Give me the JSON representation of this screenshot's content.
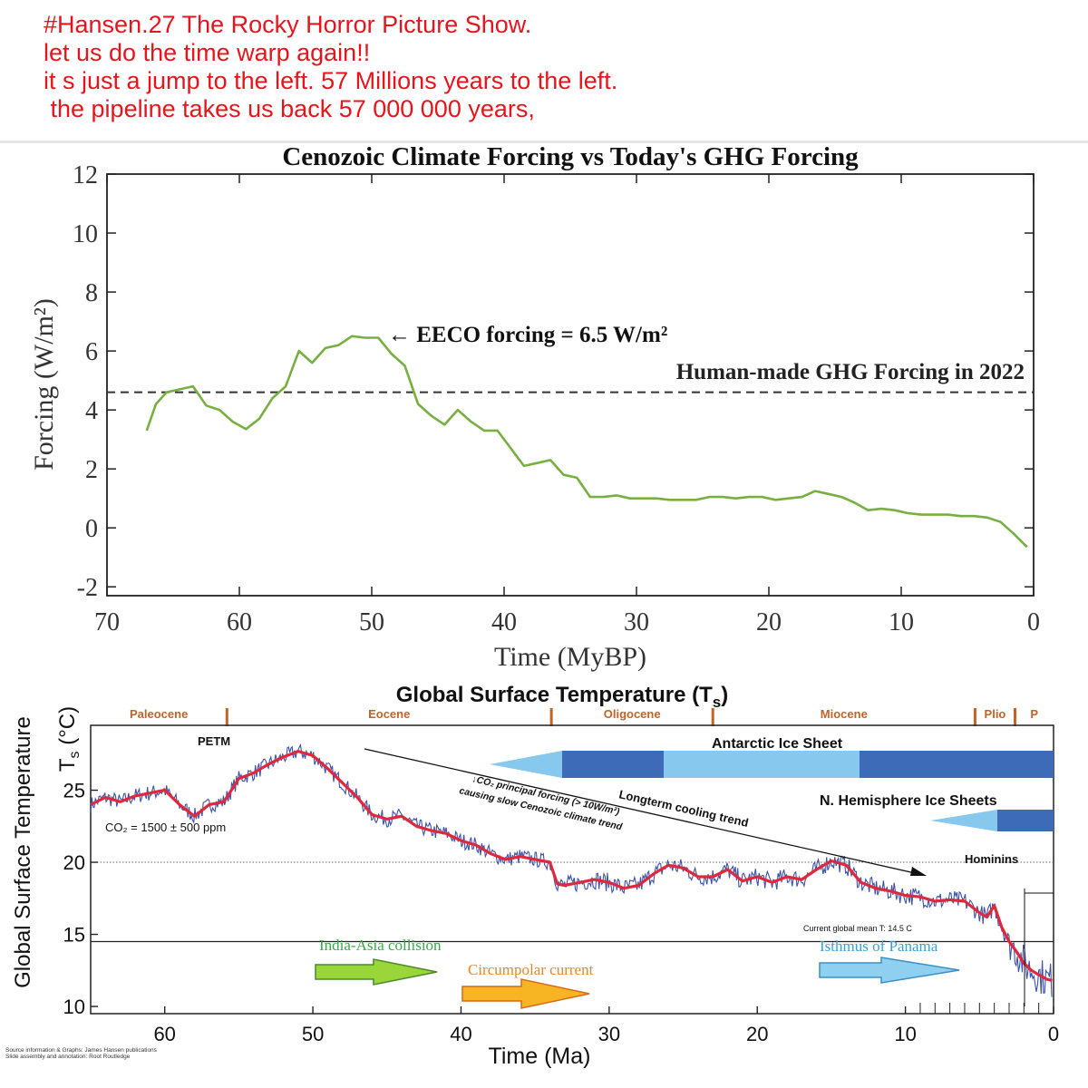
{
  "header": {
    "lines": [
      "#Hansen.27 The Rocky Horror Picture Show.",
      "let us do the time warp again!!",
      "it s just a jump to the left. 57 Millions years to the left.",
      " the pipeline takes us back 57 000 000 years,"
    ]
  },
  "chart_data": [
    {
      "type": "line",
      "title": "Cenozoic Climate Forcing vs Today's GHG Forcing",
      "xlabel": "Time (MyBP)",
      "ylabel": "Forcing (W/m²)",
      "xlim": [
        70,
        0
      ],
      "ylim": [
        -2.3,
        12
      ],
      "xticks": [
        70,
        60,
        50,
        40,
        30,
        20,
        10,
        0
      ],
      "yticks": [
        -2,
        0,
        2,
        4,
        6,
        8,
        10,
        12
      ],
      "grid": false,
      "series": [
        {
          "color": "#77b041",
          "x": [
            67,
            66.3,
            65.5,
            64.5,
            63.5,
            62.5,
            61.5,
            60.5,
            59.5,
            58.5,
            57.5,
            56.5,
            55.5,
            54.5,
            53.5,
            52.5,
            51.5,
            50.5,
            49.5,
            48.5,
            47.5,
            46.5,
            45.5,
            44.5,
            43.5,
            42.5,
            41.5,
            40.5,
            39.5,
            38.5,
            37.5,
            36.5,
            35.5,
            34.5,
            33.5,
            32.5,
            31.5,
            30.5,
            29.5,
            28.5,
            27.5,
            26.5,
            25.5,
            24.5,
            23.5,
            22.5,
            21.5,
            20.5,
            19.5,
            18.5,
            17.5,
            16.5,
            15.5,
            14.5,
            13.5,
            12.5,
            11.5,
            10.5,
            9.5,
            8.5,
            7.5,
            6.5,
            5.5,
            4.5,
            3.5,
            2.5,
            1.5,
            0.5
          ],
          "y": [
            3.3,
            4.2,
            4.6,
            4.7,
            4.8,
            4.15,
            4.0,
            3.6,
            3.35,
            3.7,
            4.4,
            4.8,
            6.0,
            5.6,
            6.1,
            6.2,
            6.5,
            6.45,
            6.45,
            5.9,
            5.5,
            4.2,
            3.8,
            3.5,
            4.0,
            3.6,
            3.3,
            3.3,
            2.7,
            2.1,
            2.2,
            2.3,
            1.8,
            1.7,
            1.05,
            1.05,
            1.1,
            1.0,
            1.0,
            1.0,
            0.95,
            0.95,
            0.95,
            1.05,
            1.05,
            1.0,
            1.05,
            1.05,
            0.95,
            1.0,
            1.05,
            1.25,
            1.15,
            1.05,
            0.85,
            0.6,
            0.65,
            0.6,
            0.5,
            0.45,
            0.45,
            0.45,
            0.4,
            0.4,
            0.35,
            0.2,
            -0.2,
            -0.65
          ]
        }
      ],
      "reference_line": {
        "y": 4.6,
        "label": "Human-made GHG Forcing in 2022",
        "style": "dashed"
      },
      "annotation": {
        "text": "← EECO forcing = 6.5 W/m²",
        "x": 50.5,
        "y": 6.5
      }
    },
    {
      "type": "line",
      "title": "Global Surface Temperature (Ts)",
      "xlabel": "Time (Ma)",
      "ylabel": "Global Surface Temperature Ts (°C)",
      "xlim": [
        65,
        0
      ],
      "ylim": [
        9.5,
        29.5
      ],
      "xticks": [
        60,
        50,
        40,
        30,
        20,
        10,
        0
      ],
      "yticks": [
        10,
        15,
        20,
        25
      ],
      "series": [
        {
          "name": "smoothed",
          "color": "#e0283c",
          "x": [
            65,
            64,
            63,
            62,
            61,
            60,
            59,
            58,
            57,
            56,
            55,
            54,
            53,
            52,
            51,
            50,
            49,
            48,
            47,
            46,
            45,
            44,
            43,
            42,
            41,
            40,
            39,
            38,
            37,
            36,
            35,
            34,
            33.5,
            33,
            32,
            31,
            30,
            29,
            28,
            27,
            26,
            25,
            24,
            23,
            22,
            21,
            20,
            19,
            18,
            17,
            16,
            15,
            14,
            13,
            12,
            11,
            10,
            9,
            8,
            7,
            6,
            5,
            4.5,
            4,
            3.5,
            3,
            2.5,
            2,
            1.5,
            1,
            0.5,
            0.1
          ],
          "y": [
            24,
            24.5,
            24.2,
            24.6,
            24.8,
            25,
            24,
            23.2,
            24,
            24.2,
            25.8,
            26.2,
            26.8,
            27.3,
            27.7,
            27.4,
            26.5,
            25.5,
            24.5,
            23.3,
            23.0,
            23.2,
            22.5,
            22.2,
            22.0,
            21.5,
            21.2,
            20.6,
            20.2,
            20.4,
            20.2,
            20.0,
            18.5,
            18.4,
            18.6,
            18.8,
            18.6,
            18.2,
            18.4,
            19.2,
            19.8,
            19.6,
            19.0,
            19.0,
            19.5,
            18.7,
            19.0,
            18.6,
            19.0,
            18.8,
            19.5,
            20.1,
            19.8,
            18.6,
            18.2,
            18.0,
            17.7,
            17.6,
            17.3,
            17.4,
            17.3,
            16.5,
            16.2,
            17.0,
            15.5,
            14.5,
            13.8,
            13.0,
            12.5,
            12.2,
            11.9,
            11.8
          ]
        }
      ],
      "reference_lines": [
        {
          "y": 20,
          "style": "dotted"
        },
        {
          "y": 14.5,
          "label": "Current global mean T: 14.5 C",
          "style": "solid"
        }
      ],
      "epochs": [
        "Paleocene",
        "Eocene",
        "Oligocene",
        "Miocene",
        "Plio",
        "P"
      ],
      "epoch_boundaries": [
        55.8,
        33.9,
        23.0,
        5.3,
        2.6
      ],
      "annotations": {
        "petm": "PETM",
        "co2": "CO₂ = 1500 ± 500 ppm",
        "cooling_trend": "Longterm cooling trend",
        "co2_forcing_1": "↓CO₂ principal forcing (> 10W/m²)",
        "co2_forcing_2": "causing slow Cenozoic climate trend",
        "antarctic": "Antarctic Ice Sheet",
        "nh_ice": "N. Hemisphere Ice Sheets",
        "hominins": "Hominins",
        "current_mean": "Current global mean T: 14.5 C",
        "india_asia": "India-Asia collision",
        "circumpolar": "Circumpolar current",
        "panama": "Isthmus of Panama"
      },
      "colors": {
        "noisy": "#3a52a8",
        "smoothed": "#e0283c",
        "ice_light": "#86c8ee",
        "ice_dark": "#3e6bb8",
        "epoch": "#c06428"
      },
      "source_lines": [
        "Source information & Graphs: James Hansen publications",
        "Slide assembly and annotation: Root Routledge"
      ]
    }
  ]
}
